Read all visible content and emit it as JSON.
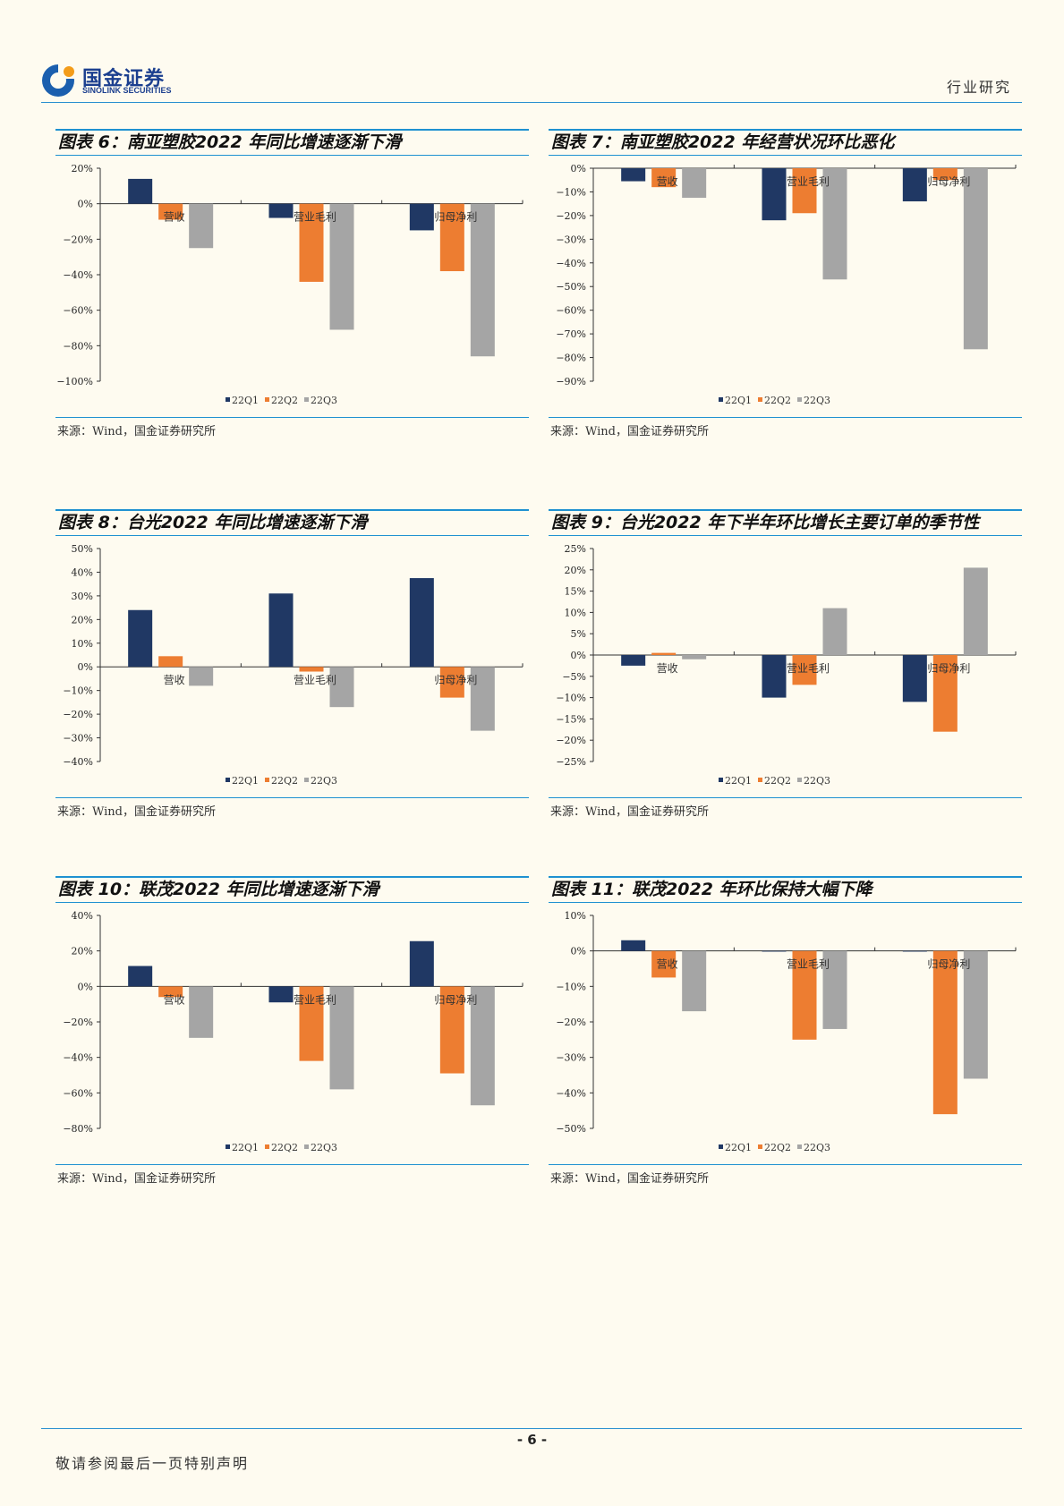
{
  "header": {
    "brand_cn": "国金证券",
    "brand_en": "SINOLINK SECURITIES",
    "section": "行业研究"
  },
  "colors": {
    "s1": "#203864",
    "s2": "#ED7D31",
    "s3": "#A5A5A5",
    "accent": "#1F91D1"
  },
  "charts": [
    {
      "id": "c6",
      "title": "图表 6：南亚塑胶2022 年同比增速逐渐下滑",
      "source": "来源：Wind，国金证券研究所",
      "chart_data": {
        "type": "bar",
        "categories": [
          "营收",
          "营业毛利",
          "归母净利"
        ],
        "series": [
          {
            "name": "22Q1",
            "values": [
              14,
              -8,
              -15
            ]
          },
          {
            "name": "22Q2",
            "values": [
              -9,
              -44,
              -38
            ]
          },
          {
            "name": "22Q3",
            "values": [
              -25,
              -71,
              -86
            ]
          }
        ],
        "ylim": [
          -100,
          20
        ],
        "ticks": [
          20,
          0,
          -20,
          -40,
          -60,
          -80,
          -100
        ],
        "tick_labels": [
          "20%",
          "0%",
          "−20%",
          "−40%",
          "−60%",
          "−80%",
          "−100%"
        ]
      }
    },
    {
      "id": "c7",
      "title": "图表 7：南亚塑胶2022 年经营状况环比恶化",
      "source": "来源：Wind，国金证券研究所",
      "chart_data": {
        "type": "bar",
        "categories": [
          "营收",
          "营业毛利",
          "归母净利"
        ],
        "series": [
          {
            "name": "22Q1",
            "values": [
              -5.5,
              -22,
              -14
            ]
          },
          {
            "name": "22Q2",
            "values": [
              -8,
              -19,
              -5
            ]
          },
          {
            "name": "22Q3",
            "values": [
              -12.5,
              -47,
              -76.5
            ]
          }
        ],
        "ylim": [
          -90,
          0
        ],
        "ticks": [
          0,
          -10,
          -20,
          -30,
          -40,
          -50,
          -60,
          -70,
          -80,
          -90
        ],
        "tick_labels": [
          "0%",
          "−10%",
          "−20%",
          "−30%",
          "−40%",
          "−50%",
          "−60%",
          "−70%",
          "−80%",
          "−90%"
        ]
      }
    },
    {
      "id": "c8",
      "title": "图表 8：台光2022 年同比增速逐渐下滑",
      "source": "来源：Wind，国金证券研究所",
      "chart_data": {
        "type": "bar",
        "categories": [
          "营收",
          "营业毛利",
          "归母净利"
        ],
        "series": [
          {
            "name": "22Q1",
            "values": [
              24,
              31,
              37.5
            ]
          },
          {
            "name": "22Q2",
            "values": [
              4.5,
              -2,
              -13
            ]
          },
          {
            "name": "22Q3",
            "values": [
              -8,
              -17,
              -27
            ]
          }
        ],
        "ylim": [
          -40,
          50
        ],
        "ticks": [
          50,
          40,
          30,
          20,
          10,
          0,
          -10,
          -20,
          -30,
          -40
        ],
        "tick_labels": [
          "50%",
          "40%",
          "30%",
          "20%",
          "10%",
          "0%",
          "−10%",
          "−20%",
          "−30%",
          "−40%"
        ]
      }
    },
    {
      "id": "c9",
      "title": "图表 9：台光2022 年下半年环比增长主要订单的季节性",
      "source": "来源：Wind，国金证券研究所",
      "chart_data": {
        "type": "bar",
        "categories": [
          "营收",
          "营业毛利",
          "归母净利"
        ],
        "series": [
          {
            "name": "22Q1",
            "values": [
              -2.5,
              -10,
              -11
            ]
          },
          {
            "name": "22Q2",
            "values": [
              0.5,
              -7,
              -18
            ]
          },
          {
            "name": "22Q3",
            "values": [
              -1,
              11,
              20.5
            ]
          }
        ],
        "ylim": [
          -25,
          25
        ],
        "ticks": [
          25,
          20,
          15,
          10,
          5,
          0,
          -5,
          -10,
          -15,
          -20,
          -25
        ],
        "tick_labels": [
          "25%",
          "20%",
          "15%",
          "10%",
          "5%",
          "0%",
          "−5%",
          "−10%",
          "−15%",
          "−20%",
          "−25%"
        ]
      }
    },
    {
      "id": "c10",
      "title": "图表 10：联茂2022 年同比增速逐渐下滑",
      "source": "来源：Wind，国金证券研究所",
      "chart_data": {
        "type": "bar",
        "categories": [
          "营收",
          "营业毛利",
          "归母净利"
        ],
        "series": [
          {
            "name": "22Q1",
            "values": [
              11.5,
              -9,
              25.5
            ]
          },
          {
            "name": "22Q2",
            "values": [
              -6,
              -42,
              -49
            ]
          },
          {
            "name": "22Q3",
            "values": [
              -29,
              -58,
              -67
            ]
          }
        ],
        "ylim": [
          -80,
          40
        ],
        "ticks": [
          40,
          20,
          0,
          -20,
          -40,
          -60,
          -80
        ],
        "tick_labels": [
          "40%",
          "20%",
          "0%",
          "−20%",
          "−40%",
          "−60%",
          "−80%"
        ]
      }
    },
    {
      "id": "c11",
      "title": "图表 11：联茂2022 年环比保持大幅下降",
      "source": "来源：Wind，国金证券研究所",
      "chart_data": {
        "type": "bar",
        "categories": [
          "营收",
          "营业毛利",
          "归母净利"
        ],
        "series": [
          {
            "name": "22Q1",
            "values": [
              3,
              0,
              0
            ]
          },
          {
            "name": "22Q2",
            "values": [
              -7.5,
              -25,
              -46
            ]
          },
          {
            "name": "22Q3",
            "values": [
              -17,
              -22,
              -36
            ]
          }
        ],
        "ylim": [
          -50,
          10
        ],
        "ticks": [
          10,
          0,
          -10,
          -20,
          -30,
          -40,
          -50
        ],
        "tick_labels": [
          "10%",
          "0%",
          "−10%",
          "−20%",
          "−30%",
          "−40%",
          "−50%"
        ]
      }
    }
  ],
  "footer": {
    "page": "- 6 -",
    "notice": "敬请参阅最后一页特别声明"
  }
}
